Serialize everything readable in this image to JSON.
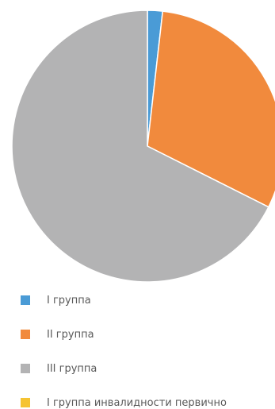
{
  "chart_data": {
    "type": "pie",
    "categories": [
      "I группа",
      "II группа",
      "III группа",
      "I группа инвалидности первично"
    ],
    "values": [
      1.8,
      30.6,
      67.6,
      0
    ],
    "colors": [
      "#4a9bd6",
      "#f18a3d",
      "#b3b3b4",
      "#f5c332"
    ],
    "title": "",
    "legend": "bottom-left",
    "start_angle_deg": 0,
    "direction": "clockwise"
  }
}
